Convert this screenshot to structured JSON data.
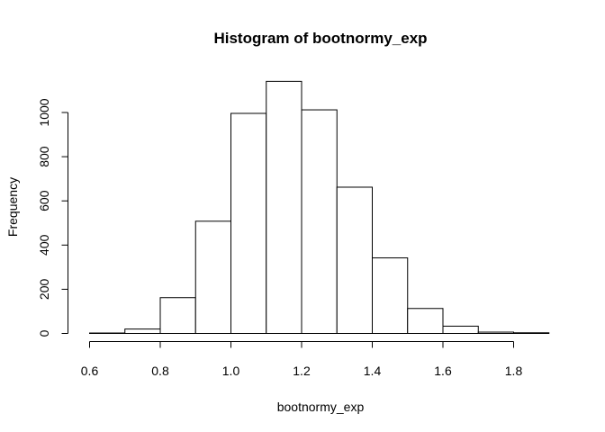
{
  "chart_data": {
    "type": "bar",
    "title": "Histogram of bootnormy_exp",
    "xlabel": "bootnormy_exp",
    "ylabel": "Frequency",
    "bins": [
      {
        "start": 0.6,
        "end": 0.7,
        "count": 2
      },
      {
        "start": 0.7,
        "end": 0.8,
        "count": 20
      },
      {
        "start": 0.8,
        "end": 0.9,
        "count": 162
      },
      {
        "start": 0.9,
        "end": 1.0,
        "count": 508
      },
      {
        "start": 1.0,
        "end": 1.1,
        "count": 996
      },
      {
        "start": 1.1,
        "end": 1.2,
        "count": 1141
      },
      {
        "start": 1.2,
        "end": 1.3,
        "count": 1012
      },
      {
        "start": 1.3,
        "end": 1.4,
        "count": 662
      },
      {
        "start": 1.4,
        "end": 1.5,
        "count": 342
      },
      {
        "start": 1.5,
        "end": 1.6,
        "count": 113
      },
      {
        "start": 1.6,
        "end": 1.7,
        "count": 33
      },
      {
        "start": 1.7,
        "end": 1.8,
        "count": 6
      },
      {
        "start": 1.8,
        "end": 1.9,
        "count": 3
      }
    ],
    "xlim": [
      0.6,
      1.9
    ],
    "ylim": [
      0,
      1141
    ],
    "x_ticks": [
      0.6,
      0.8,
      1.0,
      1.2,
      1.4,
      1.6,
      1.8
    ],
    "x_tick_labels": [
      "0.6",
      "0.8",
      "1.0",
      "1.2",
      "1.4",
      "1.6",
      "1.8"
    ],
    "y_ticks": [
      0,
      200,
      400,
      600,
      800,
      1000
    ],
    "y_tick_labels": [
      "0",
      "200",
      "400",
      "600",
      "800",
      "1000"
    ],
    "grid": false,
    "bar_fill": "#ffffff",
    "bar_stroke": "#000000"
  }
}
